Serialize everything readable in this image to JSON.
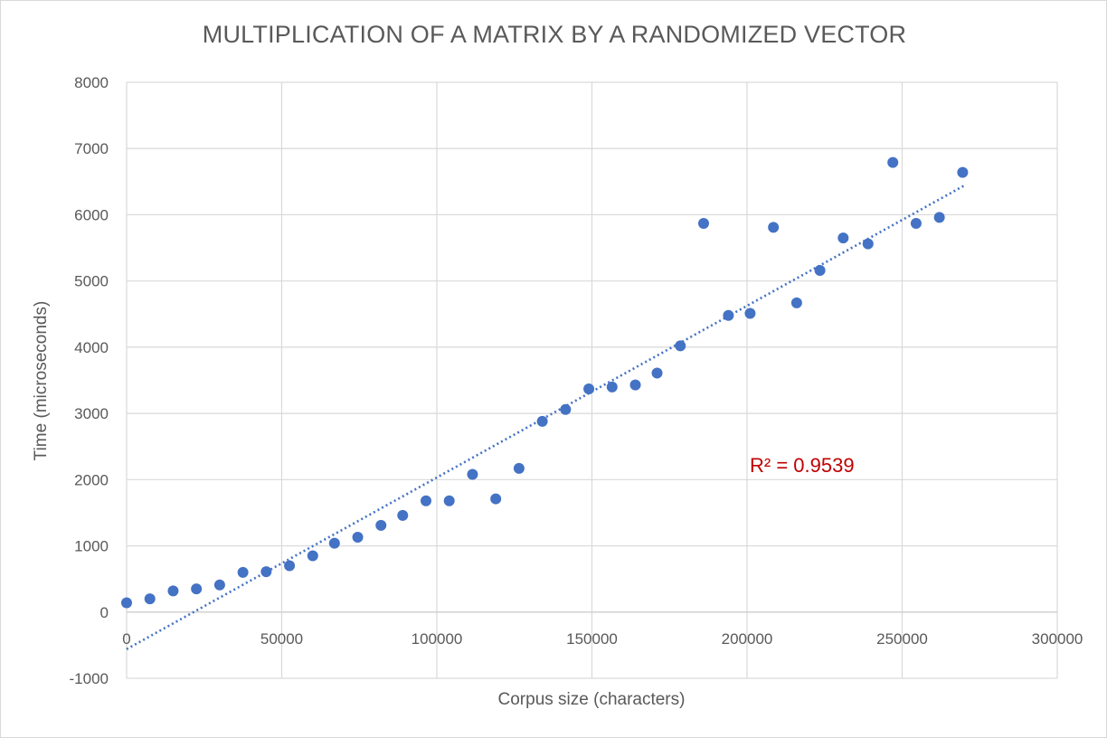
{
  "chart_data": {
    "type": "scatter",
    "title": "MULTIPLICATION OF A MATRIX BY A RANDOMIZED VECTOR",
    "xlabel": "Corpus size (characters)",
    "ylabel": "Time (microseconds)",
    "xlim": [
      0,
      300000
    ],
    "ylim": [
      -1000,
      8000
    ],
    "xticks": [
      0,
      50000,
      100000,
      150000,
      200000,
      250000,
      300000
    ],
    "xtick_labels": [
      "0",
      "50000",
      "100000",
      "150000",
      "200000",
      "250000",
      "300000"
    ],
    "yticks": [
      -1000,
      0,
      1000,
      2000,
      3000,
      4000,
      5000,
      6000,
      7000,
      8000
    ],
    "ytick_labels": [
      "-1000",
      "0",
      "1000",
      "2000",
      "3000",
      "4000",
      "5000",
      "6000",
      "7000",
      "8000"
    ],
    "grid": true,
    "point_color": "#4472c4",
    "series": [
      {
        "x": [
          0,
          7500,
          15000,
          22500,
          30000,
          37500,
          45000,
          52500,
          60000,
          67000,
          74500,
          82000,
          89000,
          96500,
          104000,
          111500,
          119000,
          126500,
          134000,
          141500,
          149000,
          156500,
          164000,
          171000,
          178500,
          186000,
          194000,
          201000,
          208500,
          216000,
          223500,
          231000,
          239000,
          247000,
          254500,
          262000,
          269500
        ],
        "y": [
          140,
          200,
          320,
          350,
          410,
          600,
          610,
          700,
          850,
          1040,
          1130,
          1310,
          1460,
          1680,
          1680,
          2080,
          1710,
          2170,
          2880,
          3060,
          3370,
          3400,
          3430,
          3610,
          4020,
          5870,
          4480,
          4510,
          5810,
          4670,
          5160,
          5650,
          5560,
          6790,
          5870,
          5960,
          6640
        ]
      }
    ],
    "trendline": {
      "style": "dotted linear",
      "color": "#4472c4",
      "x_start": 0,
      "y_start": -560,
      "x_end": 270000,
      "y_end": 6440,
      "label": "R² = 0.9539",
      "label_color": "#c00000"
    }
  }
}
